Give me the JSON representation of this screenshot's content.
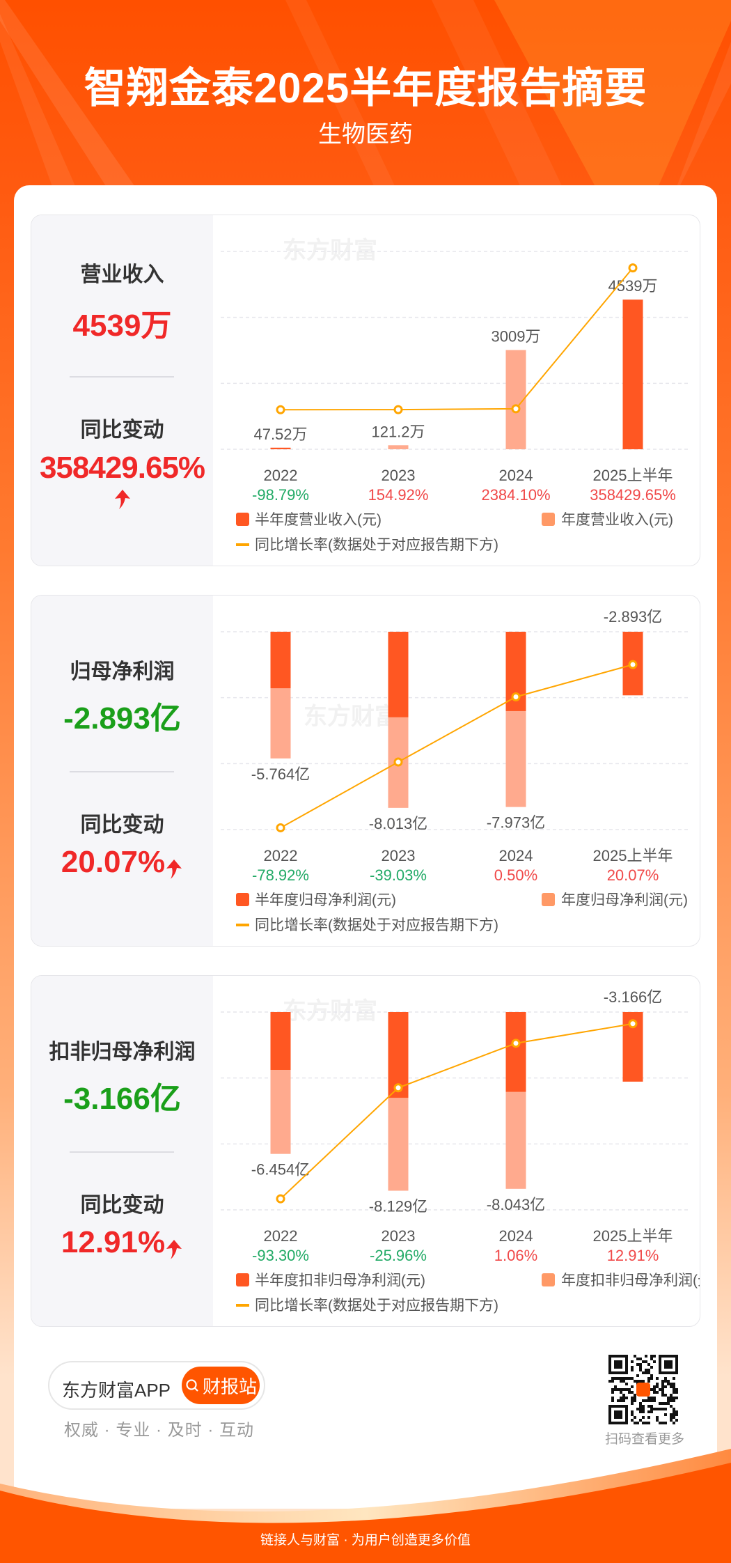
{
  "header": {
    "title": "智翔金泰2025半年度报告摘要",
    "subtitle": "生物医药"
  },
  "watermark": "东方财富",
  "colors": {
    "half": "#FF5722",
    "annual": "#FFAA8E",
    "annual_legend": "#FF9966",
    "line": "#FFA500",
    "up": "#F02828",
    "down": "#1A9F1A",
    "pct_up": "#F04848",
    "pct_down": "#22AA66"
  },
  "panels": [
    {
      "metric_label": "营业收入",
      "metric_value": "4539万",
      "metric_sign": "positive",
      "change_label": "同比变动",
      "change_value": "358429.65%",
      "change_dir": "up"
    },
    {
      "metric_label": "归母净利润",
      "metric_value": "-2.893亿",
      "metric_sign": "negative",
      "change_label": "同比变动",
      "change_value": "20.07%",
      "change_dir": "up"
    },
    {
      "metric_label": "扣非归母净利润",
      "metric_value": "-3.166亿",
      "metric_sign": "negative",
      "change_label": "同比变动",
      "change_value": "12.91%",
      "change_dir": "up"
    }
  ],
  "chart_data": [
    {
      "type": "bar",
      "categories": [
        "2022",
        "2023",
        "2024",
        "2025上半年"
      ],
      "unit": "万元",
      "ylim": [
        0,
        6000
      ],
      "series": [
        {
          "name": "半年度营业收入(元)",
          "values": [
            47.52,
            null,
            null,
            4539
          ]
        },
        {
          "name": "年度营业收入(元)",
          "values": [
            null,
            121.2,
            3009,
            null
          ]
        }
      ],
      "value_labels": [
        "47.52万",
        "121.2万",
        "3009万",
        "4539万"
      ],
      "growth": {
        "name": "同比增长率(数据处于对应报告期下方)",
        "values": [
          -98.79,
          154.92,
          2384.1,
          358429.65
        ],
        "labels": [
          "-98.79%",
          "154.92%",
          "2384.10%",
          "358429.65%"
        ],
        "ylim": [
          -100000,
          400000
        ]
      },
      "legend": "bottom"
    },
    {
      "type": "bar",
      "categories": [
        "2022",
        "2023",
        "2024",
        "2025上半年"
      ],
      "unit": "亿元",
      "ylim": [
        -9,
        0
      ],
      "series": [
        {
          "name": "半年度归母净利润(元)",
          "values": [
            -2.57,
            -3.89,
            -3.61,
            -2.893
          ]
        },
        {
          "name": "年度归母净利润(元)",
          "values": [
            -5.764,
            -8.013,
            -7.973,
            null
          ]
        }
      ],
      "value_labels": [
        "-5.764亿",
        "-8.013亿",
        "-7.973亿",
        "-2.893亿"
      ],
      "growth": {
        "name": "同比增长率(数据处于对应报告期下方)",
        "values": [
          -78.92,
          -39.03,
          0.5,
          20.07
        ],
        "labels": [
          "-78.92%",
          "-39.03%",
          "0.50%",
          "20.07%"
        ],
        "ylim": [
          -80,
          40
        ]
      },
      "legend": "bottom"
    },
    {
      "type": "bar",
      "categories": [
        "2022",
        "2023",
        "2024",
        "2025上半年"
      ],
      "unit": "亿元",
      "ylim": [
        -9,
        0
      ],
      "series": [
        {
          "name": "半年度扣非归母净利润(元)",
          "values": [
            -2.63,
            -3.9,
            -3.63,
            -3.166
          ]
        },
        {
          "name": "年度扣非归母净利润(元)",
          "values": [
            -6.454,
            -8.129,
            -8.043,
            null
          ]
        }
      ],
      "value_labels": [
        "-6.454亿",
        "-8.129亿",
        "-8.043亿",
        "-3.166亿"
      ],
      "growth": {
        "name": "同比增长率(数据处于对应报告期下方)",
        "values": [
          -93.3,
          -25.96,
          1.06,
          12.91
        ],
        "labels": [
          "-93.30%",
          "-25.96%",
          "1.06%",
          "12.91%"
        ],
        "ylim": [
          -100,
          20
        ]
      },
      "legend": "bottom"
    }
  ],
  "footer": {
    "app_name": "东方财富APP",
    "search_button": "财报站",
    "tagline": "权威 · 专业 · 及时 · 互动",
    "qr_caption": "扫码查看更多",
    "slogan": "链接人与财富 · 为用户创造更多价值"
  }
}
